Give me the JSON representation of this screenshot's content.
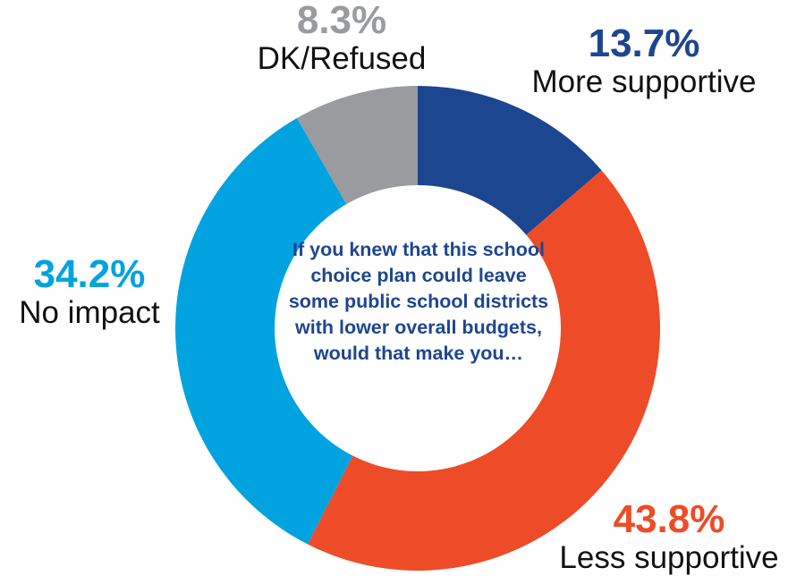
{
  "chart_data": {
    "type": "pie",
    "donut": true,
    "center_text": "If you knew that this school choice plan could leave some public school districts with lower overall budgets, would that make you…",
    "slices": [
      {
        "label": "More supportive",
        "value": 13.7,
        "value_label": "13.7%",
        "color": "#1d4690"
      },
      {
        "label": "Less supportive",
        "value": 43.8,
        "value_label": "43.8%",
        "color": "#ee4b28"
      },
      {
        "label": "No impact",
        "value": 34.2,
        "value_label": "34.2%",
        "color": "#00a3e0"
      },
      {
        "label": "DK/Refused",
        "value": 8.3,
        "value_label": "8.3%",
        "color": "#999b9e"
      }
    ]
  }
}
